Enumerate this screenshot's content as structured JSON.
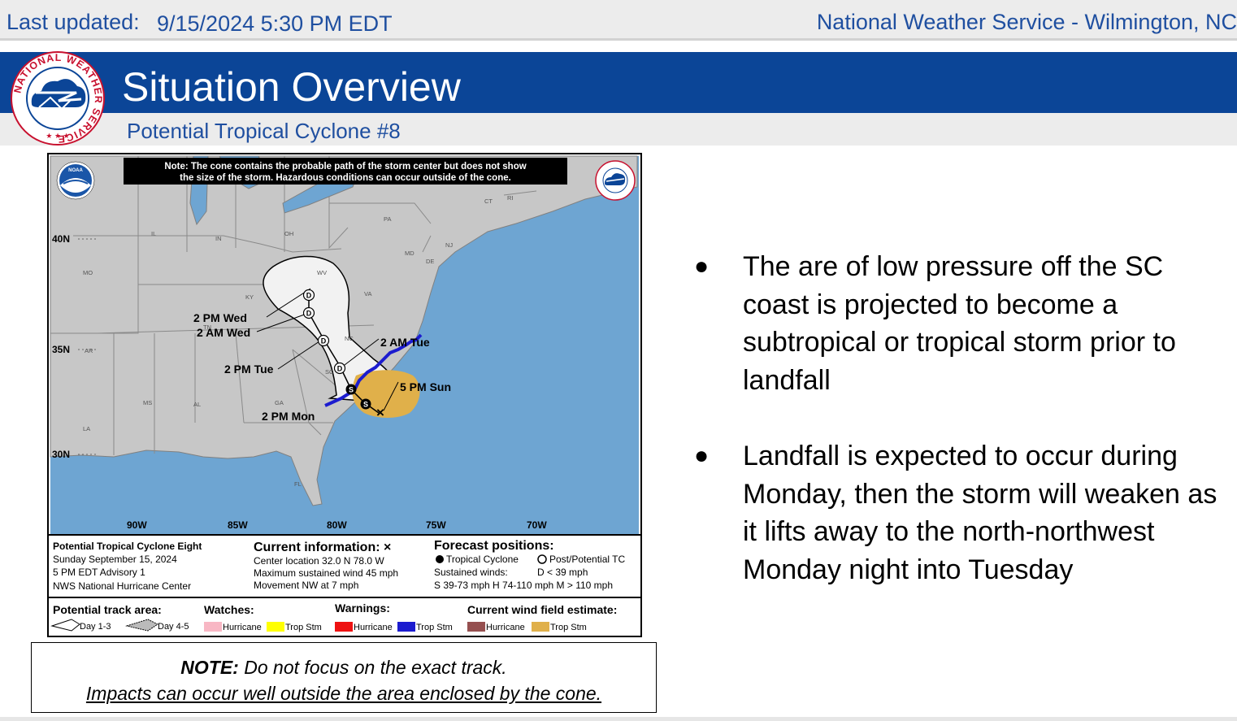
{
  "header": {
    "last_updated_label": "Last updated:",
    "last_updated_value": "9/15/2024 5:30 PM EDT",
    "office": "National Weather Service - Wilmington, NC"
  },
  "banner": {
    "title": "Situation Overview",
    "subtitle": "Potential Tropical Cyclone #8",
    "logo_text": "NATIONAL WEATHER SERVICE"
  },
  "map": {
    "cone_note_1": "Note: The cone contains the probable path of the storm center but does not show",
    "cone_note_2": "the size of the storm. Hazardous conditions can occur outside of the cone.",
    "noaa_logo_text": "NOAA",
    "lat_labels": [
      "40N",
      "35N",
      "30N"
    ],
    "lon_labels": [
      "90W",
      "85W",
      "80W",
      "75W",
      "70W"
    ],
    "state_labels": [
      "IL",
      "IN",
      "OH",
      "PA",
      "NJ",
      "MD",
      "DE",
      "CT",
      "RI",
      "MO",
      "KY",
      "WV",
      "VA",
      "TN",
      "NC",
      "AR",
      "SC",
      "MS",
      "AL",
      "GA",
      "LA",
      "FL"
    ],
    "track_labels": {
      "wed_pm": "2 PM Wed",
      "wed_am": "2 AM Wed",
      "tue_pm": "2 PM Tue",
      "tue_am": "2 AM Tue",
      "mon_pm": "2 PM Mon",
      "sun_pm": "5 PM Sun"
    },
    "point_letters": {
      "depression": "D",
      "storm": "S"
    },
    "info": {
      "name": "Potential Tropical Cyclone Eight",
      "date": "Sunday September 15, 2024",
      "advisory": "5 PM EDT Advisory 1",
      "center_name": "NWS National Hurricane Center",
      "current_heading": "Current information: ×",
      "location": "Center location 32.0 N 78.0 W",
      "max_wind": "Maximum sustained wind 45 mph",
      "movement": "Movement NW at 7 mph",
      "forecast_heading": "Forecast positions:",
      "tropical_cyclone": "Tropical Cyclone",
      "post_potential": "Post/Potential TC",
      "sustained_winds": "Sustained winds:",
      "d_range": "D < 39 mph",
      "wind_ranges": "S 39-73 mph  H 74-110 mph  M > 110 mph"
    },
    "legend": {
      "track_area": "Potential track area:",
      "day13": "Day 1-3",
      "day45": "Day 4-5",
      "watches": "Watches:",
      "warnings": "Warnings:",
      "wind_field": "Current wind field estimate:",
      "hurricane": "Hurricane",
      "trop_stm": "Trop Stm"
    }
  },
  "colors": {
    "banner_blue": "#0b4597",
    "text_blue": "#1f4fa0",
    "ocean": "#6ea5d2",
    "land": "#c7c7c7",
    "cone": "#f2f2f2",
    "wind_field_ts": "#e0b04a",
    "warning_ts": "#1c1ccf",
    "watch_hurricane": "#f8b7c4",
    "watch_ts": "#ffff00",
    "warning_hurricane": "#ee1111",
    "wind_field_hurricane": "#954f4f"
  },
  "note_box": {
    "bold": "NOTE:",
    "line1_rest": " Do not focus on the exact track.",
    "line2": "Impacts can occur well outside the area enclosed by the cone."
  },
  "bullets": [
    "The are of low pressure off the SC coast is projected to become a subtropical or tropical storm prior to landfall",
    "Landfall is expected to occur during Monday, then the storm will weaken as it lifts away to the north-northwest Monday night into Tuesday"
  ]
}
